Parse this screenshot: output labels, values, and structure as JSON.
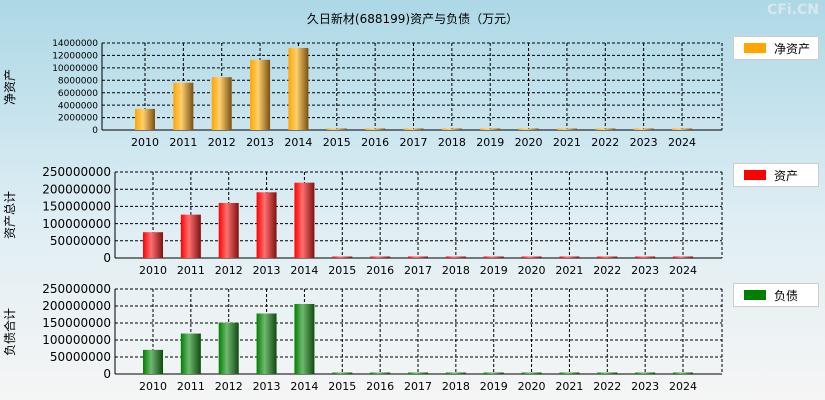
{
  "title": "久日新材(688199)资产与负债（万元）",
  "brand": "CFi.CN",
  "chart_data": [
    {
      "type": "bar",
      "ylabel": "净资产",
      "legend": "净资产",
      "color": "#ffa500",
      "ylim": [
        0,
        14000000
      ],
      "yticks": [
        "0",
        "2000000",
        "4000000",
        "6000000",
        "8000000",
        "10000000",
        "12000000",
        "14000000"
      ],
      "categories": [
        "2010",
        "2011",
        "2012",
        "2013",
        "2014",
        "2015",
        "2016",
        "2017",
        "2018",
        "2019",
        "2020",
        "2021",
        "2022",
        "2023",
        "2024"
      ],
      "values": [
        3400000,
        7600000,
        8500000,
        11300000,
        13200000,
        0,
        0,
        0,
        0,
        0,
        0,
        0,
        0,
        0,
        0
      ]
    },
    {
      "type": "bar",
      "ylabel": "资产总计",
      "legend": "资产",
      "color": "#ff0000",
      "ylim": [
        0,
        250000000
      ],
      "yticks": [
        "0",
        "50000000",
        "100000000",
        "150000000",
        "200000000",
        "250000000"
      ],
      "categories": [
        "2010",
        "2011",
        "2012",
        "2013",
        "2014",
        "2015",
        "2016",
        "2017",
        "2018",
        "2019",
        "2020",
        "2021",
        "2022",
        "2023",
        "2024"
      ],
      "values": [
        75000000,
        126000000,
        160000000,
        191000000,
        219000000,
        0,
        0,
        0,
        0,
        0,
        0,
        0,
        0,
        0,
        0
      ]
    },
    {
      "type": "bar",
      "ylabel": "负债合计",
      "legend": "负债",
      "color": "#008000",
      "ylim": [
        0,
        250000000
      ],
      "yticks": [
        "0",
        "50000000",
        "100000000",
        "150000000",
        "200000000",
        "250000000"
      ],
      "categories": [
        "2010",
        "2011",
        "2012",
        "2013",
        "2014",
        "2015",
        "2016",
        "2017",
        "2018",
        "2019",
        "2020",
        "2021",
        "2022",
        "2023",
        "2024"
      ],
      "values": [
        71000000,
        119000000,
        151000000,
        178000000,
        206000000,
        0,
        0,
        0,
        0,
        0,
        0,
        0,
        0,
        0,
        0
      ]
    }
  ]
}
